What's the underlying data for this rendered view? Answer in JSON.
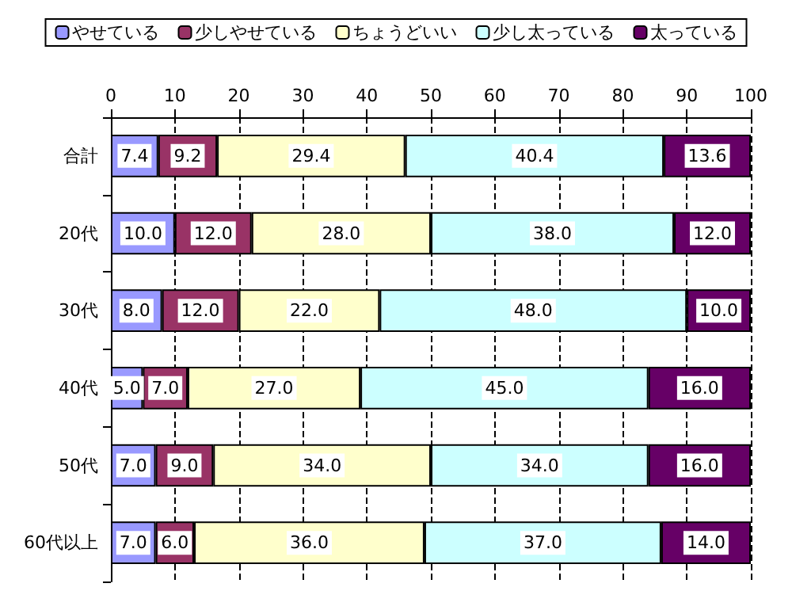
{
  "chart_data": {
    "type": "bar",
    "orientation": "horizontal",
    "stacked": true,
    "categories": [
      "合計",
      "20代",
      "30代",
      "40代",
      "50代",
      "60代以上"
    ],
    "series": [
      {
        "name": "やせている",
        "color": "#9999ff",
        "values": [
          7.4,
          10,
          8,
          5,
          7,
          7
        ],
        "value_labels": [
          "7.4",
          "10.0",
          "8.0",
          "5.0",
          "7.0",
          "7.0"
        ]
      },
      {
        "name": "少しやせている",
        "color": "#993366",
        "values": [
          9.2,
          12,
          12,
          7,
          9,
          6
        ],
        "value_labels": [
          "9.2",
          "12.0",
          "12.0",
          "7.0",
          "9.0",
          "6.0"
        ]
      },
      {
        "name": "ちょうどいい",
        "color": "#ffffcc",
        "values": [
          29.4,
          28,
          22,
          27,
          34,
          36
        ],
        "value_labels": [
          "29.4",
          "28.0",
          "22.0",
          "27.0",
          "34.0",
          "36.0"
        ]
      },
      {
        "name": "少し太っている",
        "color": "#ccffff",
        "values": [
          40.4,
          38,
          48,
          45,
          34,
          37
        ],
        "value_labels": [
          "40.4",
          "38.0",
          "48.0",
          "45.0",
          "34.0",
          "37.0"
        ]
      },
      {
        "name": "太っている",
        "color": "#660066",
        "values": [
          13.6,
          12,
          10,
          16,
          16,
          14
        ],
        "value_labels": [
          "13.6",
          "12.0",
          "10.0",
          "16.0",
          "16.0",
          "14.0"
        ]
      }
    ],
    "xlim": [
      0,
      100
    ],
    "xticks": [
      0,
      10,
      20,
      30,
      40,
      50,
      60,
      70,
      80,
      90,
      100
    ],
    "grid": "x",
    "legend": "top"
  }
}
